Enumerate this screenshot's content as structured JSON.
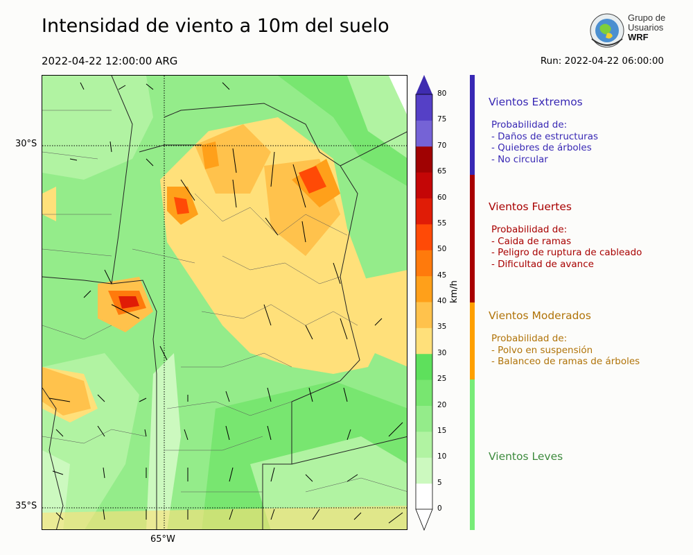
{
  "title": "Intensidad de viento a 10m del suelo",
  "valid_time": "2022-04-22 12:00:00 ARG",
  "run_time": "Run: 2022-04-22 06:00:00",
  "logo": {
    "line1": "Grupo de",
    "line2": "Usuarios",
    "line3": "WRF"
  },
  "map": {
    "lat_labels": [
      "30°S",
      "35°S"
    ],
    "lon_labels": [
      "65°W"
    ]
  },
  "colorbar": {
    "unit": "km/h",
    "ticks": [
      "0",
      "5",
      "10",
      "15",
      "20",
      "25",
      "30",
      "35",
      "40",
      "45",
      "50",
      "55",
      "60",
      "65",
      "70",
      "75",
      "80"
    ],
    "colors": [
      "#ffffff",
      "#ccf9bf",
      "#b1f3a2",
      "#94ec8a",
      "#78e670",
      "#5ee05c",
      "#ffe07a",
      "#ffc24c",
      "#ffa01a",
      "#ff7a0c",
      "#ff4a06",
      "#e01c06",
      "#c40606",
      "#a00202",
      "#7563d6",
      "#5540c6",
      "#3f2cb0"
    ]
  },
  "categories": [
    {
      "title": "Vientos Extremos",
      "color": "#3828b4",
      "desc": "Probabilidad de:\n- Daños de estructuras\n- Quiebres de árboles\n- No circular"
    },
    {
      "title": "Vientos Fuertes",
      "color": "#a80000",
      "desc": "Probabilidad de:\n- Caida de ramas\n- Peligro de ruptura de cableado\n- Dificultad de avance"
    },
    {
      "title": "Vientos Moderados",
      "color": "#b07308",
      "desc": "Probabilidad de:\n- Polvo en suspensión\n- Balanceo de ramas de árboles"
    },
    {
      "title": "Vientos Leves",
      "color": "#3c8a3c",
      "desc": ""
    }
  ],
  "category_bar_colors": [
    "#3828b4",
    "#a80000",
    "#ffa000",
    "#78ec78"
  ]
}
